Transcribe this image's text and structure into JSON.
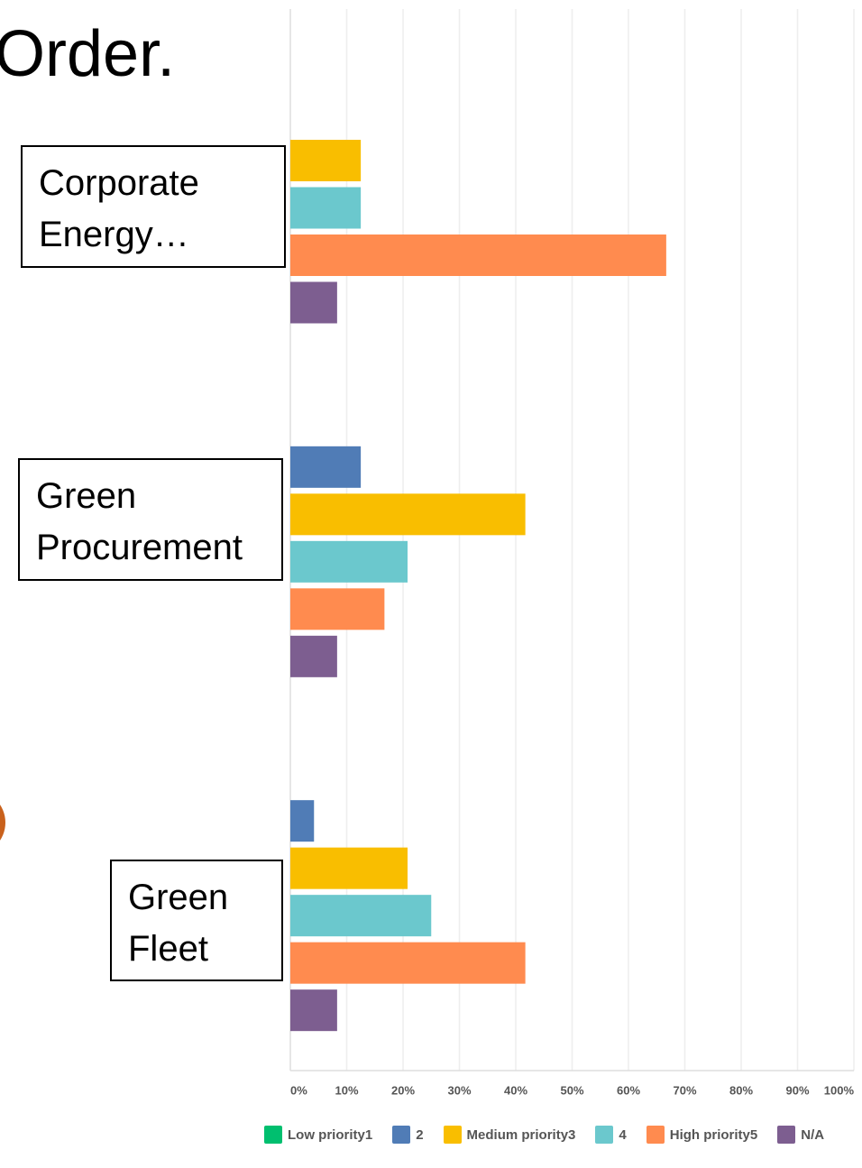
{
  "chart_data": {
    "type": "bar",
    "orientation": "horizontal",
    "title": "Order.",
    "categories": [
      "Corporate Energy…",
      "Green Procurement",
      "Green Fleet"
    ],
    "series": [
      {
        "name": "Low priority1",
        "color": "#00bf6f",
        "values": [
          0,
          0,
          0
        ]
      },
      {
        "name": "2",
        "color": "#507cb6",
        "values": [
          0,
          12.5,
          4.2
        ]
      },
      {
        "name": "Medium priority3",
        "color": "#f9be00",
        "values": [
          12.5,
          41.7,
          20.8
        ]
      },
      {
        "name": "4",
        "color": "#6bc8cd",
        "values": [
          12.5,
          20.8,
          25
        ]
      },
      {
        "name": "High priority5",
        "color": "#ff8b4f",
        "values": [
          66.7,
          16.7,
          41.7
        ]
      },
      {
        "name": "N/A",
        "color": "#7d5e90",
        "values": [
          8.3,
          8.3,
          8.3
        ]
      }
    ],
    "xlim": [
      0,
      100
    ],
    "xticks": [
      {
        "value": 0,
        "label": "0%"
      },
      {
        "value": 10,
        "label": "10%"
      },
      {
        "value": 20,
        "label": "20%"
      },
      {
        "value": 30,
        "label": "30%"
      },
      {
        "value": 40,
        "label": "40%"
      },
      {
        "value": 50,
        "label": "50%"
      },
      {
        "value": 60,
        "label": "60%"
      },
      {
        "value": 70,
        "label": "70%"
      },
      {
        "value": 80,
        "label": "80%"
      },
      {
        "value": 90,
        "label": "90%"
      },
      {
        "value": 100,
        "label": "100%"
      }
    ],
    "grid": true,
    "legend": "bottom"
  }
}
